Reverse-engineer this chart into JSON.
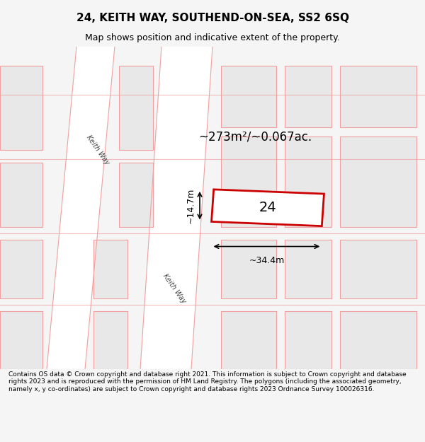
{
  "title": "24, KEITH WAY, SOUTHEND-ON-SEA, SS2 6SQ",
  "subtitle": "Map shows position and indicative extent of the property.",
  "area_label": "~273m²/~0.067ac.",
  "property_number": "24",
  "dim_width": "~34.4m",
  "dim_height": "~14.7m",
  "street_label_top": "Keith Way",
  "street_label_bottom": "Keith Way",
  "footer": "Contains OS data © Crown copyright and database right 2021. This information is subject to Crown copyright and database rights 2023 and is reproduced with the permission of HM Land Registry. The polygons (including the associated geometry, namely x, y co-ordinates) are subject to Crown copyright and database rights 2023 Ordnance Survey 100026316.",
  "bg_color": "#f5f5f5",
  "map_bg": "#ffffff",
  "block_fill": "#e8e8e8",
  "block_edge": "#f0a0a0",
  "road_fill": "#ffffff",
  "road_edge": "#f0a0a0",
  "property_edge": "#cc0000",
  "property_fill": "#ffffff",
  "footer_bg": "#ffffff"
}
